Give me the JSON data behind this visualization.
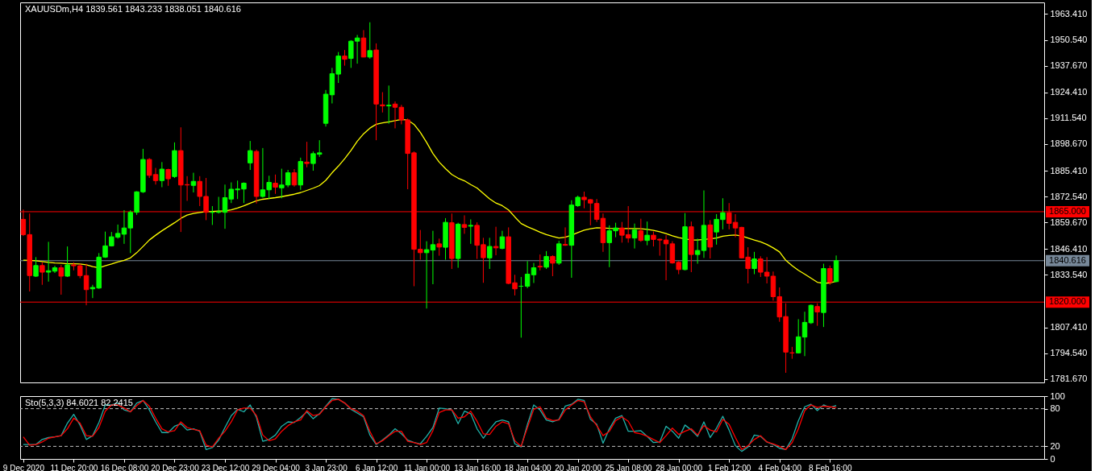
{
  "chart_data": [
    {
      "type": "candlestick",
      "title": "XAUUSDm,H4 1839.561 1843.233 1838.051 1840.616",
      "categories": [
        null,
        null,
        null,
        null,
        null,
        null,
        null,
        null,
        null,
        null,
        null,
        null,
        null,
        null,
        null,
        null,
        null,
        null,
        null,
        null,
        null,
        null,
        null,
        null,
        null,
        null,
        null,
        null,
        null,
        null,
        null,
        null,
        null,
        null,
        null,
        null,
        null,
        null,
        null,
        null,
        null,
        null,
        null,
        null,
        null,
        null,
        null,
        null,
        null,
        null,
        null,
        null,
        null,
        null,
        null,
        null,
        null,
        null,
        null,
        null,
        null,
        null,
        null,
        null,
        null,
        null,
        null,
        null,
        null,
        null,
        null,
        null,
        null,
        null,
        null,
        null,
        null,
        null,
        null,
        null,
        null,
        null,
        null,
        null,
        null,
        null,
        null,
        null,
        null,
        null,
        null,
        null,
        null,
        null,
        null,
        null,
        null,
        null,
        null,
        null,
        null,
        null,
        null,
        null,
        null,
        null,
        null,
        null,
        null,
        null,
        null,
        null,
        null,
        null,
        null,
        null,
        null,
        null,
        null,
        null,
        null,
        null,
        null,
        null,
        null,
        null,
        null,
        null,
        null,
        null
      ],
      "ohlc": [
        [
          1861.2,
          1866.1,
          1852.9,
          1853.6
        ],
        [
          1853.6,
          1864.1,
          1825.3,
          1833.2
        ],
        [
          1832.9,
          1842.4,
          1832.5,
          1838.2
        ],
        [
          1838.2,
          1839.8,
          1828.6,
          1834.9
        ],
        [
          1834.9,
          1850.0,
          1830.2,
          1835.6
        ],
        [
          1835.4,
          1838.1,
          1834.5,
          1837.1
        ],
        [
          1837.1,
          1838.5,
          1823.7,
          1832.9
        ],
        [
          1832.9,
          1847.7,
          1832.5,
          1838.5
        ],
        [
          1838.5,
          1839.8,
          1835.8,
          1838.1
        ],
        [
          1838.1,
          1839.1,
          1831.9,
          1833.2
        ],
        [
          1833.2,
          1839.1,
          1818.4,
          1826.2
        ],
        [
          1826.6,
          1828.6,
          1822.0,
          1827.3
        ],
        [
          1827.0,
          1844.4,
          1826.6,
          1842.4
        ],
        [
          1842.4,
          1855.1,
          1842.0,
          1848.0
        ],
        [
          1848.0,
          1854.9,
          1847.7,
          1852.5
        ],
        [
          1852.3,
          1858.6,
          1851.6,
          1854.2
        ],
        [
          1853.8,
          1865.8,
          1849.0,
          1856.9
        ],
        [
          1856.9,
          1865.7,
          1844.4,
          1864.7
        ],
        [
          1864.7,
          1875.2,
          1863.4,
          1874.9
        ],
        [
          1874.9,
          1896.3,
          1874.3,
          1891.0
        ],
        [
          1891.0,
          1891.7,
          1881.8,
          1883.1
        ],
        [
          1883.5,
          1886.8,
          1878.5,
          1880.5
        ],
        [
          1880.5,
          1889.7,
          1877.2,
          1886.2
        ],
        [
          1886.0,
          1886.4,
          1877.9,
          1881.4
        ],
        [
          1882.5,
          1899.5,
          1881.8,
          1895.4
        ],
        [
          1895.4,
          1907.0,
          1854.9,
          1878.3
        ],
        [
          1878.5,
          1882.7,
          1870.4,
          1878.3
        ],
        [
          1878.1,
          1884.4,
          1874.6,
          1880.1
        ],
        [
          1880.1,
          1882.7,
          1867.8,
          1872.6
        ],
        [
          1872.6,
          1881.8,
          1860.8,
          1864.7
        ],
        [
          1864.7,
          1867.8,
          1858.4,
          1864.7
        ],
        [
          1864.7,
          1872.4,
          1864.1,
          1865.0
        ],
        [
          1864.7,
          1878.5,
          1856.5,
          1872.0
        ],
        [
          1871.3,
          1879.6,
          1869.3,
          1876.2
        ],
        [
          1875.9,
          1880.5,
          1871.3,
          1876.3
        ],
        [
          1876.3,
          1879.6,
          1869.3,
          1879.2
        ],
        [
          1889.3,
          1900.2,
          1885.8,
          1895.4
        ],
        [
          1895.0,
          1895.9,
          1869.1,
          1872.6
        ],
        [
          1872.6,
          1896.7,
          1872.0,
          1875.9
        ],
        [
          1875.9,
          1882.9,
          1871.3,
          1879.6
        ],
        [
          1879.2,
          1883.5,
          1873.9,
          1877.2
        ],
        [
          1876.9,
          1886.4,
          1871.7,
          1878.3
        ],
        [
          1878.3,
          1885.8,
          1877.2,
          1884.4
        ],
        [
          1884.4,
          1886.2,
          1877.5,
          1878.3
        ],
        [
          1878.3,
          1891.9,
          1875.9,
          1890.0
        ],
        [
          1889.7,
          1899.8,
          1887.1,
          1889.0
        ],
        [
          1889.0,
          1895.0,
          1885.4,
          1893.9
        ],
        [
          1893.6,
          1900.6,
          1892.3,
          1894.3
        ],
        [
          1909.0,
          1925.6,
          1907.4,
          1923.5
        ],
        [
          1923.2,
          1936.6,
          1918.9,
          1933.7
        ],
        [
          1933.5,
          1944.5,
          1929.1,
          1942.5
        ],
        [
          1942.5,
          1945.5,
          1937.7,
          1940.9
        ],
        [
          1941.3,
          1950.4,
          1936.6,
          1949.9
        ],
        [
          1949.9,
          1953.0,
          1938.7,
          1951.5
        ],
        [
          1951.5,
          1955.4,
          1941.9,
          1942.0
        ],
        [
          1942.0,
          1959.3,
          1941.2,
          1945.2
        ],
        [
          1945.5,
          1948.8,
          1900.6,
          1918.6
        ],
        [
          1918.2,
          1924.5,
          1914.4,
          1917.7
        ],
        [
          1917.7,
          1927.8,
          1908.8,
          1918.0
        ],
        [
          1918.6,
          1919.9,
          1906.5,
          1917.0
        ],
        [
          1917.0,
          1918.2,
          1908.5,
          1910.7
        ],
        [
          1910.7,
          1911.4,
          1876.2,
          1894.0
        ],
        [
          1894.3,
          1895.0,
          1827.9,
          1846.3
        ],
        [
          1846.3,
          1855.9,
          1841.1,
          1844.6
        ],
        [
          1844.6,
          1850.3,
          1816.8,
          1846.1
        ],
        [
          1845.9,
          1855.5,
          1828.9,
          1848.6
        ],
        [
          1849.0,
          1851.6,
          1843.1,
          1847.4
        ],
        [
          1847.3,
          1861.8,
          1841.1,
          1859.7
        ],
        [
          1859.5,
          1864.1,
          1836.5,
          1841.7
        ],
        [
          1841.7,
          1859.5,
          1837.1,
          1858.8
        ],
        [
          1858.6,
          1863.2,
          1854.0,
          1857.2
        ],
        [
          1857.8,
          1861.2,
          1849.0,
          1858.2
        ],
        [
          1858.2,
          1859.7,
          1841.5,
          1848.3
        ],
        [
          1848.6,
          1852.0,
          1829.6,
          1842.1
        ],
        [
          1842.0,
          1852.0,
          1836.5,
          1847.7
        ],
        [
          1847.7,
          1857.5,
          1843.3,
          1847.0
        ],
        [
          1846.7,
          1855.5,
          1846.3,
          1852.5
        ],
        [
          1852.5,
          1857.2,
          1828.9,
          1829.3
        ],
        [
          1829.6,
          1833.6,
          1823.3,
          1826.6
        ],
        [
          1827.9,
          1832.5,
          1802.3,
          1827.9
        ],
        [
          1827.9,
          1840.4,
          1826.9,
          1833.9
        ],
        [
          1833.6,
          1839.5,
          1829.5,
          1837.1
        ],
        [
          1837.8,
          1843.7,
          1835.8,
          1837.5
        ],
        [
          1837.4,
          1845.4,
          1836.5,
          1842.7
        ],
        [
          1842.7,
          1843.3,
          1832.9,
          1839.4
        ],
        [
          1839.4,
          1850.5,
          1838.5,
          1849.0
        ],
        [
          1848.7,
          1857.2,
          1848.0,
          1848.3
        ],
        [
          1848.3,
          1870.7,
          1832.1,
          1868.3
        ],
        [
          1868.0,
          1873.0,
          1867.4,
          1872.2
        ],
        [
          1872.2,
          1875.0,
          1866.7,
          1871.0
        ],
        [
          1871.0,
          1871.3,
          1858.2,
          1869.3
        ],
        [
          1869.1,
          1871.3,
          1859.9,
          1861.2
        ],
        [
          1861.7,
          1864.1,
          1845.0,
          1849.6
        ],
        [
          1849.6,
          1858.2,
          1837.4,
          1855.5
        ],
        [
          1855.5,
          1859.5,
          1852.3,
          1856.9
        ],
        [
          1856.9,
          1859.9,
          1849.6,
          1853.3
        ],
        [
          1853.6,
          1867.8,
          1849.6,
          1851.9
        ],
        [
          1851.9,
          1859.1,
          1846.7,
          1855.9
        ],
        [
          1855.5,
          1861.5,
          1850.0,
          1850.7
        ],
        [
          1850.7,
          1860.1,
          1848.3,
          1853.3
        ],
        [
          1853.3,
          1855.1,
          1847.7,
          1851.2
        ],
        [
          1851.3,
          1851.6,
          1843.1,
          1850.9
        ],
        [
          1850.9,
          1853.3,
          1830.9,
          1849.0
        ],
        [
          1849.0,
          1850.3,
          1839.1,
          1839.5
        ],
        [
          1839.8,
          1840.4,
          1833.9,
          1836.2
        ],
        [
          1836.2,
          1864.3,
          1835.8,
          1857.5
        ],
        [
          1857.5,
          1860.1,
          1834.9,
          1843.7
        ],
        [
          1843.7,
          1851.6,
          1839.1,
          1845.7
        ],
        [
          1845.7,
          1875.6,
          1842.0,
          1858.2
        ],
        [
          1858.4,
          1860.8,
          1841.7,
          1847.4
        ],
        [
          1854.9,
          1863.8,
          1848.6,
          1861.2
        ],
        [
          1861.1,
          1871.7,
          1856.2,
          1864.5
        ],
        [
          1864.5,
          1869.3,
          1856.2,
          1859.2
        ],
        [
          1859.7,
          1863.8,
          1852.3,
          1856.9
        ],
        [
          1857.2,
          1857.5,
          1841.7,
          1842.0
        ],
        [
          1842.4,
          1847.3,
          1829.3,
          1836.7
        ],
        [
          1836.7,
          1845.0,
          1833.9,
          1841.5
        ],
        [
          1841.5,
          1842.8,
          1832.5,
          1834.9
        ],
        [
          1834.9,
          1842.4,
          1829.3,
          1832.9
        ],
        [
          1832.9,
          1835.2,
          1820.7,
          1822.7
        ],
        [
          1822.7,
          1827.3,
          1810.2,
          1812.6
        ],
        [
          1812.8,
          1819.4,
          1784.8,
          1795.1
        ],
        [
          1794.7,
          1797.7,
          1791.8,
          1794.7
        ],
        [
          1794.7,
          1811.5,
          1794.4,
          1802.7
        ],
        [
          1802.6,
          1815.2,
          1793.1,
          1809.9
        ],
        [
          1809.7,
          1818.8,
          1809.1,
          1818.4
        ],
        [
          1817.8,
          1819.4,
          1808.2,
          1815.1
        ],
        [
          1814.8,
          1839.1,
          1807.6,
          1836.7
        ],
        [
          1836.7,
          1838.2,
          1828.6,
          1829.9
        ],
        [
          1830.2,
          1843.2,
          1829.9,
          1840.6
        ]
      ],
      "colors": [
        "#ff0000",
        "#ff0000",
        "#00ff00",
        "#ff0000",
        "#00ff00",
        "#00ff00",
        "#ff0000",
        "#00ff00",
        "#ff0000",
        "#ff0000",
        "#ff0000",
        "#00ff00",
        "#00ff00",
        "#00ff00",
        "#00ff00",
        "#00ff00",
        "#00ff00",
        "#00ff00",
        "#00ff00",
        "#00ff00",
        "#ff0000",
        "#ff0000",
        "#00ff00",
        "#ff0000",
        "#00ff00",
        "#ff0000",
        "#ff0000",
        "#00ff00",
        "#ff0000",
        "#ff0000",
        "#00ff00",
        "#00ff00",
        "#00ff00",
        "#00ff00",
        "#00ff00",
        "#00ff00",
        "#00ff00",
        "#ff0000",
        "#00ff00",
        "#00ff00",
        "#ff0000",
        "#00ff00",
        "#00ff00",
        "#ff0000",
        "#00ff00",
        "#ff0000",
        "#00ff00",
        "#00ff00",
        "#00ff00",
        "#00ff00",
        "#00ff00",
        "#ff0000",
        "#00ff00",
        "#00ff00",
        "#ff0000",
        "#00ff00",
        "#ff0000",
        "#ff0000",
        "#00ff00",
        "#ff0000",
        "#ff0000",
        "#ff0000",
        "#ff0000",
        "#ff0000",
        "#00ff00",
        "#00ff00",
        "#ff0000",
        "#00ff00",
        "#ff0000",
        "#00ff00",
        "#ff0000",
        "#00ff00",
        "#ff0000",
        "#ff0000",
        "#00ff00",
        "#ff0000",
        "#00ff00",
        "#ff0000",
        "#ff0000",
        "#00ff00",
        "#00ff00",
        "#00ff00",
        "#ff0000",
        "#00ff00",
        "#ff0000",
        "#00ff00",
        "#ff0000",
        "#00ff00",
        "#00ff00",
        "#ff0000",
        "#ff0000",
        "#ff0000",
        "#ff0000",
        "#00ff00",
        "#00ff00",
        "#ff0000",
        "#ff0000",
        "#00ff00",
        "#ff0000",
        "#00ff00",
        "#ff0000",
        "#ff0000",
        "#ff0000",
        "#ff0000",
        "#ff0000",
        "#00ff00",
        "#ff0000",
        "#00ff00",
        "#00ff00",
        "#ff0000",
        "#00ff00",
        "#00ff00",
        "#ff0000",
        "#ff0000",
        "#ff0000",
        "#ff0000",
        "#00ff00",
        "#ff0000",
        "#ff0000",
        "#ff0000",
        "#ff0000",
        "#ff0000",
        "#ff0000",
        "#00ff00",
        "#00ff00",
        "#00ff00",
        "#ff0000",
        "#00ff00",
        "#ff0000",
        "#00ff00"
      ],
      "series": [
        {
          "type": "line",
          "color": "#ffff00",
          "values": [
            1840.9,
            1840.8,
            1840.6,
            1840.2,
            1839.8,
            1839.5,
            1839.4,
            1839.1,
            1839.1,
            1839.0,
            1838.6,
            1837.7,
            1837.1,
            1838.1,
            1839.0,
            1840.0,
            1840.8,
            1842.0,
            1844.6,
            1847.7,
            1850.9,
            1853.3,
            1855.5,
            1857.5,
            1859.5,
            1861.7,
            1863.3,
            1864.1,
            1864.6,
            1865.0,
            1865.1,
            1865.3,
            1865.4,
            1865.9,
            1866.8,
            1867.9,
            1869.2,
            1870.4,
            1871.2,
            1871.6,
            1872.0,
            1872.5,
            1873.1,
            1873.7,
            1874.5,
            1875.6,
            1876.7,
            1878.0,
            1880.6,
            1884.4,
            1887.7,
            1891.4,
            1895.5,
            1900.1,
            1903.8,
            1906.6,
            1908.5,
            1909.2,
            1909.7,
            1910.3,
            1910.9,
            1910.6,
            1908.5,
            1904.5,
            1899.5,
            1894.0,
            1889.7,
            1886.4,
            1883.5,
            1881.7,
            1880.4,
            1878.5,
            1876.8,
            1874.1,
            1871.4,
            1869.3,
            1868.0,
            1865.9,
            1862.4,
            1859.1,
            1857.5,
            1856.2,
            1854.8,
            1853.6,
            1852.7,
            1851.9,
            1852.3,
            1853.3,
            1854.6,
            1855.8,
            1856.5,
            1857.0,
            1856.9,
            1856.7,
            1856.6,
            1856.6,
            1856.6,
            1856.6,
            1856.5,
            1856.2,
            1855.7,
            1855.0,
            1854.1,
            1853.0,
            1852.1,
            1851.5,
            1850.9,
            1850.9,
            1851.2,
            1851.5,
            1851.9,
            1852.8,
            1853.2,
            1853.4,
            1852.9,
            1851.9,
            1850.9,
            1850.0,
            1848.7,
            1847.0,
            1845.0,
            1840.8,
            1838.1,
            1835.8,
            1833.9,
            1831.9,
            1829.9,
            1829.3,
            1829.6,
            1830.4
          ]
        }
      ],
      "ylim": [
        1780.0,
        1969.2
      ],
      "yticks": [
        {
          "value": 1781.67,
          "label": "1781.670"
        },
        {
          "value": 1794.54,
          "label": "1794.540"
        },
        {
          "value": 1807.41,
          "label": "1807.410"
        },
        {
          "value": 1833.54,
          "label": "1833.540"
        },
        {
          "value": 1846.41,
          "label": "1846.410"
        },
        {
          "value": 1859.67,
          "label": "1859.670"
        },
        {
          "value": 1872.54,
          "label": "1872.540"
        },
        {
          "value": 1885.41,
          "label": "1885.410"
        },
        {
          "value": 1898.67,
          "label": "1898.670"
        },
        {
          "value": 1911.54,
          "label": "1911.540"
        },
        {
          "value": 1924.41,
          "label": "1924.410"
        },
        {
          "value": 1937.67,
          "label": "1937.670"
        },
        {
          "value": 1950.54,
          "label": "1950.540"
        },
        {
          "value": 1963.41,
          "label": "1963.410"
        }
      ],
      "ref_lines": [
        {
          "axis": "y",
          "value": 1865,
          "label": "1865.000",
          "color": "#ff0000"
        },
        {
          "axis": "y",
          "value": 1820,
          "label": "1820.000",
          "color": "#ff0000"
        },
        {
          "axis": "y",
          "value": 1840.616,
          "label": "1840.616",
          "color": "#778899"
        }
      ],
      "tick_labels": "y"
    },
    {
      "type": "line",
      "title": "Sto(5,3,3) 84.6021 82.2415",
      "categories": [
        "9 Dec 2020",
        null,
        null,
        null,
        null,
        null,
        null,
        null,
        "11 Dec 20:00",
        null,
        null,
        null,
        null,
        null,
        null,
        null,
        "16 Dec 08:00",
        null,
        null,
        null,
        null,
        null,
        null,
        null,
        "20 Dec 23:00",
        null,
        null,
        null,
        null,
        null,
        null,
        null,
        "23 Dec 12:00",
        null,
        null,
        null,
        null,
        null,
        null,
        null,
        "29 Dec 04:00",
        null,
        null,
        null,
        null,
        null,
        null,
        null,
        "3 Jan 23:00",
        null,
        null,
        null,
        null,
        null,
        null,
        null,
        "6 Jan 12:00",
        null,
        null,
        null,
        null,
        null,
        null,
        null,
        "11 Jan 00:00",
        null,
        null,
        null,
        null,
        null,
        null,
        null,
        "13 Jan 16:00",
        null,
        null,
        null,
        null,
        null,
        null,
        null,
        "18 Jan 04:00",
        null,
        null,
        null,
        null,
        null,
        null,
        null,
        "20 Jan 20:00",
        null,
        null,
        null,
        null,
        null,
        null,
        null,
        "25 Jan 08:00",
        null,
        null,
        null,
        null,
        null,
        null,
        null,
        "28 Jan 00:00",
        null,
        null,
        null,
        null,
        null,
        null,
        null,
        "1 Feb 12:00",
        null,
        null,
        null,
        null,
        null,
        null,
        null,
        "4 Feb 04:00",
        null,
        null,
        null,
        null,
        null,
        null,
        null,
        "8 Feb 16:00",
        null
      ],
      "series": [
        {
          "color": "#20b2aa",
          "values": [
            23,
            23,
            23,
            31,
            34,
            35,
            37,
            57,
            71,
            54,
            31,
            37,
            58,
            86,
            86,
            89,
            78,
            75,
            89,
            93,
            78,
            59,
            42,
            42,
            52,
            56,
            46,
            48,
            44,
            15,
            18,
            30,
            50,
            69,
            79,
            75,
            86,
            66,
            28,
            31,
            38,
            52,
            59,
            58,
            66,
            75,
            64,
            72,
            84,
            96,
            95,
            89,
            79,
            73,
            67,
            38,
            23,
            30,
            38,
            48,
            40,
            30,
            26,
            24,
            36,
            50,
            81,
            80,
            78,
            56,
            76,
            72,
            48,
            33,
            47,
            59,
            62,
            59,
            24,
            19,
            55,
            86,
            78,
            62,
            59,
            63,
            84,
            87,
            95,
            93,
            63,
            55,
            25,
            48,
            65,
            69,
            44,
            44,
            45,
            36,
            26,
            27,
            52,
            44,
            33,
            54,
            46,
            36,
            59,
            34,
            49,
            68,
            46,
            21,
            12,
            19,
            38,
            36,
            27,
            23,
            17,
            15,
            32,
            61,
            83,
            87,
            77,
            86,
            82,
            85
          ]
        },
        {
          "color": "#ff0000",
          "values": [
            35,
            22,
            23,
            27,
            33,
            35,
            37,
            48,
            65,
            57,
            37,
            36,
            50,
            76,
            86,
            86,
            81,
            75,
            85,
            93,
            84,
            65,
            48,
            43,
            45,
            59,
            50,
            47,
            45,
            22,
            19,
            33,
            44,
            59,
            78,
            81,
            81,
            69,
            38,
            29,
            32,
            44,
            53,
            59,
            62,
            77,
            69,
            71,
            83,
            93,
            95,
            89,
            80,
            76,
            69,
            44,
            24,
            29,
            37,
            44,
            44,
            28,
            26,
            23,
            26,
            45,
            74,
            78,
            78,
            65,
            67,
            76,
            60,
            40,
            39,
            52,
            59,
            56,
            29,
            20,
            50,
            79,
            83,
            65,
            61,
            62,
            78,
            86,
            93,
            91,
            67,
            53,
            37,
            44,
            61,
            67,
            60,
            42,
            40,
            36,
            31,
            26,
            37,
            49,
            39,
            44,
            48,
            38,
            53,
            46,
            43,
            63,
            55,
            34,
            15,
            21,
            31,
            37,
            27,
            24,
            20,
            15,
            26,
            48,
            77,
            86,
            82,
            84,
            83,
            82
          ]
        }
      ],
      "ylim": [
        0,
        100
      ],
      "yticks": [
        0,
        20,
        80,
        100
      ],
      "ref_lines": [
        {
          "axis": "y",
          "value": 80,
          "color": "#c0c0c0",
          "line_style": "dashed"
        },
        {
          "axis": "y",
          "value": 20,
          "color": "#c0c0c0",
          "line_style": "dashed"
        }
      ]
    }
  ]
}
